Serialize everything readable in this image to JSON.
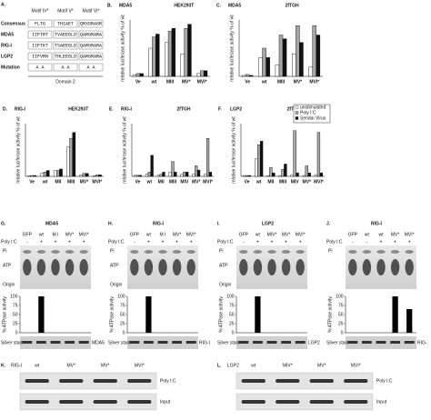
{
  "panel_a": {
    "letter": "A.",
    "headers": [
      "Motif IV*",
      "Motif V*",
      "Motif VI*"
    ],
    "rows": [
      {
        "label": "Consensus",
        "cells": [
          "FLTG",
          "THIAET",
          "QRXGRAGR"
        ]
      },
      {
        "label": "MDA5",
        "cells": [
          "IIFTRT",
          "TVAEEGLD",
          "QARGRARA"
        ]
      },
      {
        "label": "RIG-I",
        "cells": [
          "IIFTKT",
          "TSAEEGLD",
          "QARGRARA"
        ]
      },
      {
        "label": "LGP2",
        "cells": [
          "IIFVRN",
          "THLEEGLD",
          "QARGRARA"
        ]
      },
      {
        "label": "Mutation",
        "cells": [
          "A   A",
          "A   A",
          "A   A"
        ]
      }
    ],
    "domain": "Domain 2"
  },
  "chart_data": [
    {
      "type": "bar",
      "letter": "B.",
      "title": "MDA5",
      "subtitle": "HEK293T",
      "ylabel": "relative luciferase activity % of wt",
      "ylim": [
        0,
        200
      ],
      "categories": [
        "Ve",
        "wt",
        "MIII",
        "MV*",
        "MVI*"
      ],
      "series": [
        {
          "name": "unstimulated",
          "color": "#ffffff",
          "values": [
            5,
            100,
            120,
            80,
            10
          ]
        },
        {
          "name": "Poly I:C",
          "color": "#a6a6a6",
          "values": [
            10,
            140,
            160,
            170,
            20
          ]
        },
        {
          "name": "Sendai Virus",
          "color": "#111111",
          "values": [
            10,
            150,
            170,
            185,
            20
          ]
        }
      ]
    },
    {
      "type": "bar",
      "letter": "C.",
      "title": "MDA5",
      "subtitle": "2fTGH",
      "ylabel": "relative luciferase activity % of wt",
      "ylim": [
        0,
        300
      ],
      "categories": [
        "Ve",
        "wt",
        "MIII",
        "MV*",
        "MVI*"
      ],
      "series": [
        {
          "name": "unstimulated",
          "color": "#ffffff",
          "values": [
            5,
            100,
            60,
            120,
            50
          ]
        },
        {
          "name": "Poly I:C",
          "color": "#a6a6a6",
          "values": [
            10,
            150,
            220,
            270,
            270
          ]
        },
        {
          "name": "Sendai Virus",
          "color": "#111111",
          "values": [
            5,
            100,
            200,
            180,
            220
          ]
        }
      ]
    },
    {
      "type": "bar",
      "letter": "D.",
      "title": "RIG-I",
      "subtitle": "HEK293T",
      "ylabel": "relative luciferase activity % of wt",
      "ylim": [
        0,
        180
      ],
      "categories": [
        "Ve",
        "wt",
        "MII",
        "MIII",
        "MV*",
        "MVI*"
      ],
      "series": [
        {
          "name": "unstimulated",
          "color": "#ffffff",
          "values": [
            2,
            10,
            20,
            100,
            5,
            2
          ]
        },
        {
          "name": "Poly I:C",
          "color": "#a6a6a6",
          "values": [
            3,
            15,
            20,
            130,
            10,
            5
          ]
        },
        {
          "name": "Sendai Virus",
          "color": "#111111",
          "values": [
            3,
            20,
            25,
            150,
            10,
            5
          ]
        }
      ]
    },
    {
      "type": "bar",
      "letter": "E.",
      "title": "RIG-I",
      "subtitle": "2fTGH",
      "ylabel": "relative luciferase activity % of wt",
      "ylim": [
        0,
        250
      ],
      "categories": [
        "Ve",
        "wt",
        "MII",
        "MIII",
        "MIV",
        "MV*",
        "MVI*"
      ],
      "series": [
        {
          "name": "unstimulated",
          "color": "#ffffff",
          "values": [
            5,
            10,
            5,
            20,
            10,
            10,
            10
          ]
        },
        {
          "name": "Poly I:C",
          "color": "#a6a6a6",
          "values": [
            5,
            20,
            10,
            70,
            20,
            50,
            180
          ]
        },
        {
          "name": "Sendai Virus",
          "color": "#111111",
          "values": [
            5,
            100,
            20,
            20,
            20,
            30,
            20
          ]
        }
      ]
    },
    {
      "type": "bar",
      "letter": "F.",
      "title": "LGP2",
      "subtitle": "2fTGH",
      "ylabel": "relative luciferase activity % of wt",
      "ylim": [
        0,
        300
      ],
      "legend": "upper right",
      "categories": [
        "Ve",
        "wt",
        "MII",
        "MIII",
        "MIV",
        "MV*",
        "MVI*"
      ],
      "series": [
        {
          "name": "unstimulated",
          "color": "#ffffff",
          "values": [
            5,
            100,
            5,
            5,
            10,
            5,
            10
          ]
        },
        {
          "name": "Poly I:C",
          "color": "#a6a6a6",
          "values": [
            5,
            180,
            50,
            40,
            260,
            60,
            250
          ]
        },
        {
          "name": "Sendai Virus",
          "color": "#111111",
          "values": [
            5,
            200,
            20,
            70,
            20,
            20,
            20
          ]
        }
      ]
    },
    {
      "type": "atpase",
      "letter": "G.",
      "title": "MDA5",
      "row_label": "Poly I:C",
      "categories": [
        "GFP",
        "wt",
        "M I",
        "MV*",
        "MVI*"
      ],
      "poly_ic": [
        "-",
        "+",
        "+",
        "+",
        "+"
      ],
      "gel_labels": [
        "Pi",
        "ATP",
        "Origin"
      ],
      "ylabel": "% ATPase activity",
      "ylim": [
        0,
        100
      ],
      "yticks": [
        0,
        25,
        50,
        75,
        100
      ],
      "values": [
        0,
        100,
        0,
        0,
        0
      ],
      "stain_label": "Silver stain",
      "protein": "MDA5",
      "color": "#000000"
    },
    {
      "type": "atpase",
      "letter": "H.",
      "title": "RIG-I",
      "row_label": "Poly I:C",
      "categories": [
        "GFP",
        "wt",
        "M I",
        "MV*",
        "MVI*"
      ],
      "poly_ic": [
        "-",
        "+",
        "+",
        "+",
        "+"
      ],
      "gel_labels": [
        "Pi",
        "ATP",
        "Origin"
      ],
      "ylabel": "% ATPase activity",
      "ylim": [
        0,
        100
      ],
      "yticks": [
        0,
        25,
        50,
        75,
        100
      ],
      "values": [
        0,
        100,
        0,
        0,
        0
      ],
      "stain_label": "Silver stain",
      "protein": "RIG-I",
      "color": "#000000"
    },
    {
      "type": "atpase",
      "letter": "I.",
      "title": "LGP2",
      "row_label": "Poly I:C",
      "categories": [
        "GFP",
        "wt",
        "MIV*",
        "MV*",
        "MVI*"
      ],
      "poly_ic": [
        "-",
        "+",
        "+",
        "+",
        "+"
      ],
      "gel_labels": [
        "Pi",
        "ATP",
        "Origin"
      ],
      "ylabel": "% ATPase activity",
      "ylim": [
        0,
        100
      ],
      "yticks": [
        0,
        25,
        50,
        75,
        100
      ],
      "values": [
        0,
        100,
        0,
        0,
        0
      ],
      "stain_label": "Silver stain",
      "protein": "LGP2",
      "color": "#000000"
    },
    {
      "type": "atpase",
      "letter": "J.",
      "title": "RIG-I",
      "row_label": "Poly I:C",
      "categories": [
        "GFP",
        "wt",
        "wt",
        "MV*",
        "MVI*"
      ],
      "poly_ic": [
        "-",
        "-",
        "+",
        "+",
        "+"
      ],
      "gel_labels": [
        "Pi"
      ],
      "ylabel": "% ATPase activity",
      "ylim": [
        0,
        100
      ],
      "yticks": [
        0,
        25,
        50,
        75,
        100
      ],
      "values": [
        0,
        0,
        0,
        100,
        65
      ],
      "stain_label": "Silver stain",
      "protein": "RIG-",
      "color": "#000000"
    }
  ],
  "blots": [
    {
      "letter": "K.",
      "protein": "RIG-I",
      "lanes": [
        "wt",
        "MV*",
        "MV*",
        "MVI*"
      ],
      "rows": [
        "Poly I:C",
        "Input"
      ]
    },
    {
      "letter": "L.",
      "protein": "LGP2",
      "lanes": [
        "wt",
        "MIV*",
        "MV*",
        "MVI*"
      ],
      "rows": [
        "Poly I:C",
        "Input"
      ]
    }
  ]
}
